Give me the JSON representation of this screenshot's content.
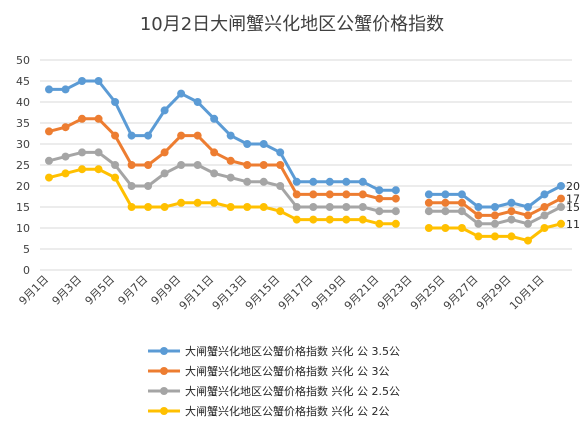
{
  "chart_data": {
    "type": "line",
    "title": "10月2日大闸蟹兴化地区公蟹价格指数",
    "xlabel": "",
    "ylabel": "",
    "ylim": [
      0,
      50
    ],
    "yticks": [
      0,
      5,
      10,
      15,
      20,
      25,
      30,
      35,
      40,
      45,
      50
    ],
    "grid": true,
    "legend_position": "bottom",
    "x": [
      "9月1日",
      "9月2日",
      "9月3日",
      "9月4日",
      "9月5日",
      "9月6日",
      "9月7日",
      "9月8日",
      "9月9日",
      "9月10日",
      "9月11日",
      "9月12日",
      "9月13日",
      "9月14日",
      "9月15日",
      "9月16日",
      "9月17日",
      "9月18日",
      "9月19日",
      "9月20日",
      "9月21日",
      "9月22日",
      "9月23日",
      "9月24日",
      "9月25日",
      "9月26日",
      "9月27日",
      "9月28日",
      "9月29日",
      "9月30日",
      "10月1日",
      "10月2日"
    ],
    "tick_labels": [
      "9月1日",
      "9月3日",
      "9月5日",
      "9月7日",
      "9月9日",
      "9月11日",
      "9月13日",
      "9月15日",
      "9月17日",
      "9月19日",
      "9月21日",
      "9月23日",
      "9月25日",
      "9月27日",
      "9月29日",
      "10月1日"
    ],
    "tick_indices": [
      0,
      2,
      4,
      6,
      8,
      10,
      12,
      14,
      16,
      18,
      20,
      22,
      24,
      26,
      28,
      30
    ],
    "series": [
      {
        "name": "大闸蟹兴化地区公蟹价格指数 兴化 公 3.5公",
        "color": "#5b9bd5",
        "values": [
          43,
          43,
          45,
          45,
          40,
          32,
          32,
          38,
          42,
          40,
          36,
          32,
          30,
          30,
          28,
          21,
          21,
          21,
          21,
          21,
          19,
          19,
          null,
          18,
          18,
          18,
          15,
          15,
          16,
          15,
          18,
          20
        ],
        "end_label": "20"
      },
      {
        "name": "大闸蟹兴化地区公蟹价格指数 兴化 公 3公",
        "color": "#ed7d31",
        "values": [
          33,
          34,
          36,
          36,
          32,
          25,
          25,
          28,
          32,
          32,
          28,
          26,
          25,
          25,
          25,
          18,
          18,
          18,
          18,
          18,
          17,
          17,
          null,
          16,
          16,
          16,
          13,
          13,
          14,
          13,
          15,
          17
        ],
        "end_label": "17"
      },
      {
        "name": "大闸蟹兴化地区公蟹价格指数 兴化 公 2.5公",
        "color": "#a5a5a5",
        "values": [
          26,
          27,
          28,
          28,
          25,
          20,
          20,
          23,
          25,
          25,
          23,
          22,
          21,
          21,
          20,
          15,
          15,
          15,
          15,
          15,
          14,
          14,
          null,
          14,
          14,
          14,
          11,
          11,
          12,
          11,
          13,
          15
        ],
        "end_label": "15"
      },
      {
        "name": "大闸蟹兴化地区公蟹价格指数 兴化 公 2公",
        "color": "#ffc000",
        "values": [
          22,
          23,
          24,
          24,
          22,
          15,
          15,
          15,
          16,
          16,
          16,
          15,
          15,
          15,
          14,
          12,
          12,
          12,
          12,
          12,
          11,
          11,
          null,
          10,
          10,
          10,
          8,
          8,
          8,
          7,
          10,
          11
        ],
        "end_label": "11"
      }
    ]
  }
}
